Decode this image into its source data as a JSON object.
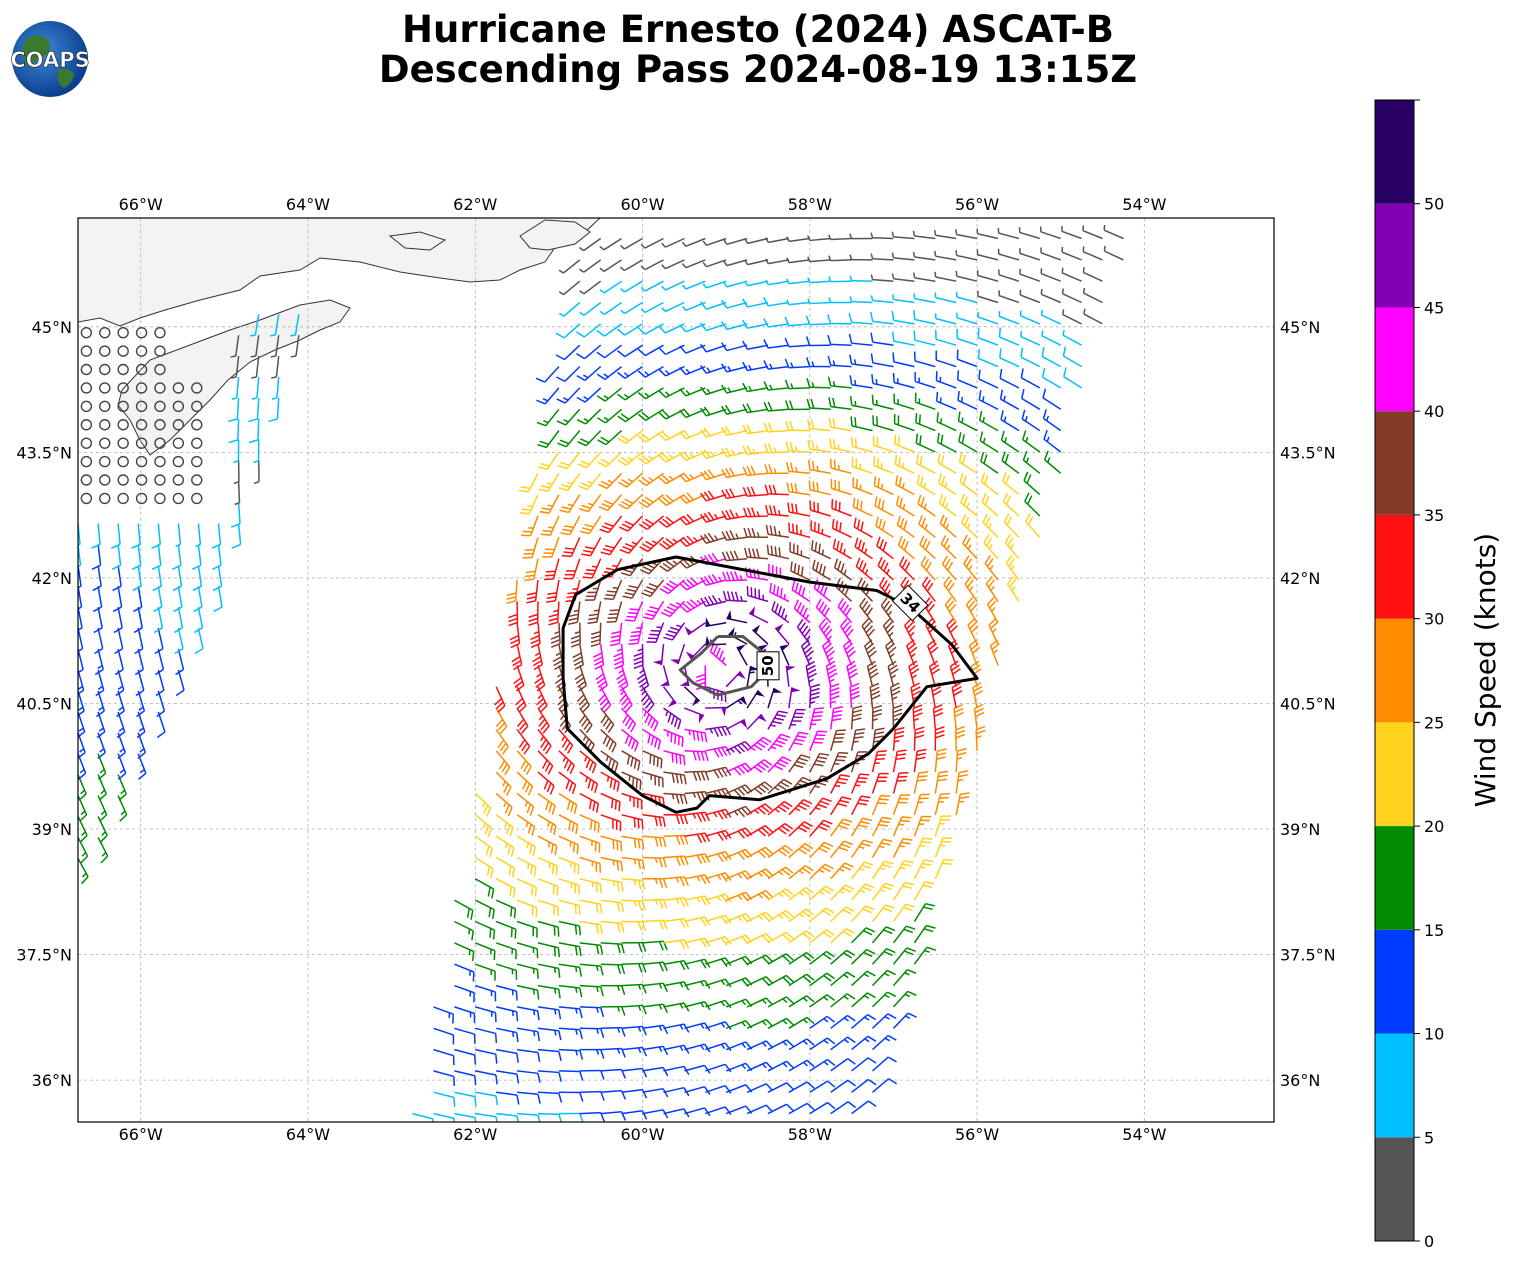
{
  "title": {
    "line1": "Hurricane Ernesto (2024) ASCAT-B",
    "line2": "Descending Pass 2024-08-19 13:15Z"
  },
  "logo": {
    "text": "COAPS"
  },
  "map": {
    "lon_range": [
      -66.75,
      -52.45
    ],
    "lat_range": [
      35.5,
      46.3
    ],
    "lon_ticks": [
      {
        "value": -66,
        "label": "66°W"
      },
      {
        "value": -64,
        "label": "64°W"
      },
      {
        "value": -62,
        "label": "62°W"
      },
      {
        "value": -60,
        "label": "60°W"
      },
      {
        "value": -58,
        "label": "58°W"
      },
      {
        "value": -56,
        "label": "56°W"
      },
      {
        "value": -54,
        "label": "54°W"
      }
    ],
    "lat_ticks": [
      {
        "value": 36,
        "label": "36°N"
      },
      {
        "value": 37.5,
        "label": "37.5°N"
      },
      {
        "value": 39,
        "label": "39°N"
      },
      {
        "value": 40.5,
        "label": "40.5°N"
      },
      {
        "value": 42,
        "label": "42°N"
      },
      {
        "value": 43.5,
        "label": "43.5°N"
      },
      {
        "value": 45,
        "label": "45°N"
      }
    ],
    "gridlines": true,
    "storm_center": {
      "lon": -59.1,
      "lat": 40.9
    },
    "contours": [
      {
        "label": "34",
        "units": "knots",
        "label_at": {
          "lon": -56.8,
          "lat": 41.7
        },
        "label_angle": 45,
        "points": [
          [
            -60.3,
            42.1
          ],
          [
            -59.6,
            42.25
          ],
          [
            -58.8,
            42.1
          ],
          [
            -58.0,
            41.95
          ],
          [
            -57.2,
            41.85
          ],
          [
            -56.8,
            41.65
          ],
          [
            -56.3,
            41.2
          ],
          [
            -56.0,
            40.8
          ],
          [
            -56.6,
            40.7
          ],
          [
            -57.0,
            40.2
          ],
          [
            -57.3,
            39.9
          ],
          [
            -57.8,
            39.6
          ],
          [
            -58.6,
            39.35
          ],
          [
            -59.2,
            39.4
          ],
          [
            -59.35,
            39.25
          ],
          [
            -59.6,
            39.2
          ],
          [
            -60.0,
            39.4
          ],
          [
            -60.5,
            39.8
          ],
          [
            -60.9,
            40.2
          ],
          [
            -60.95,
            40.8
          ],
          [
            -60.95,
            41.4
          ],
          [
            -60.8,
            41.8
          ],
          [
            -60.3,
            42.1
          ]
        ]
      },
      {
        "label": "50",
        "units": "knots",
        "label_at": {
          "lon": -58.5,
          "lat": 40.95
        },
        "label_angle": -90,
        "points": [
          [
            -59.1,
            41.3
          ],
          [
            -58.8,
            41.3
          ],
          [
            -58.55,
            41.1
          ],
          [
            -58.5,
            40.9
          ],
          [
            -58.7,
            40.7
          ],
          [
            -59.1,
            40.6
          ],
          [
            -59.4,
            40.75
          ],
          [
            -59.55,
            40.9
          ],
          [
            -59.3,
            41.1
          ],
          [
            -59.1,
            41.3
          ]
        ]
      }
    ],
    "swaths": [
      {
        "name": "east",
        "corners": [
          [
            -60.7,
            46.1
          ],
          [
            -54.15,
            46.1
          ],
          [
            -57.3,
            35.5
          ],
          [
            -62.8,
            35.5
          ]
        ]
      },
      {
        "name": "west",
        "corners": [
          [
            -67.2,
            44.6
          ],
          [
            -63.9,
            45.3
          ],
          [
            -65.1,
            41.6
          ],
          [
            -66.75,
            38.4
          ]
        ]
      }
    ],
    "calm_region": {
      "lon": [
        -66.75,
        -65.0
      ],
      "lat": [
        42.85,
        45.1
      ]
    }
  },
  "colorbar": {
    "label": "Wind Speed (knots)",
    "bins": [
      {
        "min": 0,
        "max": 5,
        "color": "#555555"
      },
      {
        "min": 5,
        "max": 10,
        "color": "#00bfff"
      },
      {
        "min": 10,
        "max": 15,
        "color": "#003cff"
      },
      {
        "min": 15,
        "max": 20,
        "color": "#008c00"
      },
      {
        "min": 20,
        "max": 25,
        "color": "#ffd21e"
      },
      {
        "min": 25,
        "max": 30,
        "color": "#ff8c00"
      },
      {
        "min": 30,
        "max": 35,
        "color": "#ff0f0f"
      },
      {
        "min": 35,
        "max": 40,
        "color": "#823c28"
      },
      {
        "min": 40,
        "max": 45,
        "color": "#ff00ff"
      },
      {
        "min": 45,
        "max": 50,
        "color": "#8200b4"
      },
      {
        "min": 50,
        "max": 55,
        "color": "#280064"
      }
    ],
    "ticks": [
      "0",
      "5",
      "10",
      "15",
      "20",
      "25",
      "30",
      "35",
      "40",
      "45",
      "50"
    ]
  }
}
